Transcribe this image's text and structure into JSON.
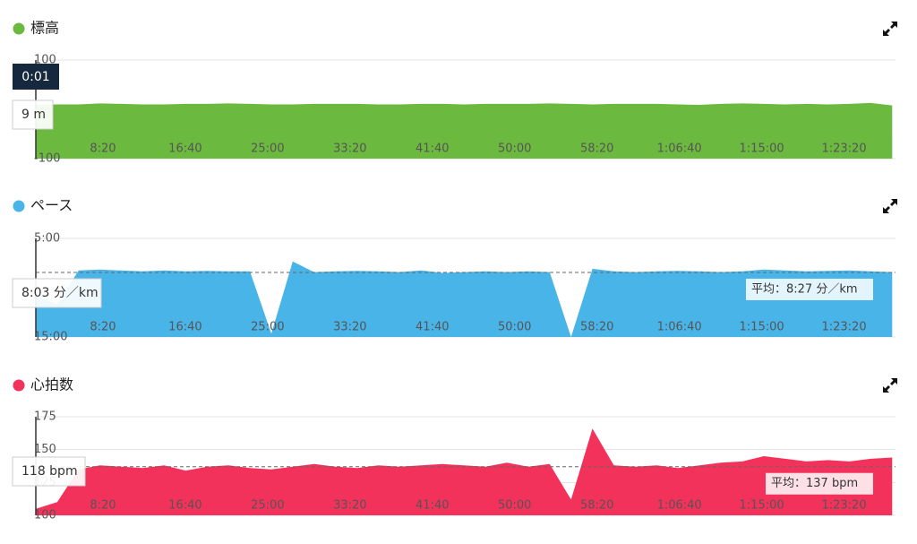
{
  "chart_data": [
    {
      "type": "area",
      "title": "標高",
      "color": "#6cb93f",
      "cursor_time": "0:01",
      "tooltip": "9 m",
      "x": [
        0,
        130,
        260,
        390,
        520,
        650,
        780,
        910,
        1040,
        1170,
        1300,
        1430,
        1560,
        1690,
        1820,
        1950,
        2080,
        2210,
        2340,
        2470,
        2600,
        2730,
        2860,
        2990,
        3120,
        3250,
        3380,
        3510,
        3640,
        3770,
        3900,
        4030,
        4160,
        4290,
        4420,
        4550,
        4680,
        4810,
        4940,
        5070,
        5200
      ],
      "values": [
        9,
        10,
        10,
        12,
        11,
        10,
        10,
        11,
        11,
        12,
        11,
        10,
        10,
        11,
        11,
        11,
        10,
        10,
        11,
        11,
        10,
        11,
        11,
        11,
        12,
        11,
        10,
        11,
        11,
        11,
        10,
        9,
        11,
        12,
        11,
        10,
        11,
        10,
        11,
        13,
        8
      ],
      "xlim": [
        0,
        5220
      ],
      "xticks": [
        {
          "value": 500,
          "label": "8:20"
        },
        {
          "value": 1000,
          "label": "16:40"
        },
        {
          "value": 1500,
          "label": "25:00"
        },
        {
          "value": 2000,
          "label": "33:20"
        },
        {
          "value": 2500,
          "label": "41:40"
        },
        {
          "value": 3000,
          "label": "50:00"
        },
        {
          "value": 3500,
          "label": "58:20"
        },
        {
          "value": 4000,
          "label": "1:06:40"
        },
        {
          "value": 4500,
          "label": "1:15:00"
        },
        {
          "value": 5000,
          "label": "1:23:20"
        }
      ],
      "ylim": [
        -100,
        100
      ],
      "yticks": [
        {
          "value": -100,
          "label": "-100"
        },
        100
      ],
      "grid": true
    },
    {
      "type": "area",
      "title": "ペース",
      "color": "#49b4e8",
      "tooltip": "8:03 分／km",
      "y_inverted": true,
      "average": 507,
      "average_label": "平均：8:27 分／km",
      "x": [
        0,
        130,
        260,
        390,
        520,
        650,
        780,
        910,
        1040,
        1170,
        1300,
        1430,
        1560,
        1690,
        1820,
        1950,
        2080,
        2210,
        2340,
        2470,
        2600,
        2730,
        2860,
        2990,
        3120,
        3250,
        3380,
        3510,
        3640,
        3770,
        3900,
        4030,
        4160,
        4290,
        4420,
        4550,
        4680,
        4810,
        4940,
        5070,
        5200
      ],
      "values": [
        650,
        700,
        495,
        490,
        495,
        500,
        495,
        500,
        498,
        500,
        500,
        880,
        440,
        505,
        500,
        498,
        500,
        505,
        495,
        510,
        505,
        500,
        505,
        500,
        505,
        900,
        485,
        500,
        505,
        500,
        498,
        500,
        505,
        500,
        490,
        495,
        500,
        498,
        495,
        500,
        505
      ],
      "xlim": [
        0,
        5220
      ],
      "xticks": [
        {
          "value": 500,
          "label": "8:20"
        },
        {
          "value": 1000,
          "label": "16:40"
        },
        {
          "value": 1500,
          "label": "25:00"
        },
        {
          "value": 2000,
          "label": "33:20"
        },
        {
          "value": 2500,
          "label": "41:40"
        },
        {
          "value": 3000,
          "label": "50:00"
        },
        {
          "value": 3500,
          "label": "58:20"
        },
        {
          "value": 4000,
          "label": "1:06:40"
        },
        {
          "value": 4500,
          "label": "1:15:00"
        },
        {
          "value": 5000,
          "label": "1:23:20"
        }
      ],
      "ylim": [
        300,
        900
      ],
      "yticks": [
        {
          "value": 300,
          "label": "5:00"
        },
        {
          "value": 900,
          "label": "15:00"
        }
      ],
      "grid": true
    },
    {
      "type": "area",
      "title": "心拍数",
      "color": "#f2325a",
      "tooltip": "118 bpm",
      "average": 137,
      "average_label": "平均：137 bpm",
      "x": [
        0,
        130,
        260,
        390,
        520,
        650,
        780,
        910,
        1040,
        1170,
        1300,
        1430,
        1560,
        1690,
        1820,
        1950,
        2080,
        2210,
        2340,
        2470,
        2600,
        2730,
        2860,
        2990,
        3120,
        3250,
        3380,
        3510,
        3640,
        3770,
        3900,
        4030,
        4160,
        4290,
        4420,
        4550,
        4680,
        4810,
        4940,
        5070,
        5200
      ],
      "values": [
        105,
        110,
        135,
        138,
        137,
        136,
        138,
        134,
        137,
        138,
        136,
        135,
        137,
        139,
        137,
        136,
        138,
        137,
        138,
        139,
        138,
        137,
        140,
        137,
        139,
        112,
        166,
        138,
        137,
        138,
        136,
        138,
        140,
        141,
        145,
        143,
        141,
        142,
        141,
        143,
        144
      ],
      "xlim": [
        0,
        5220
      ],
      "xticks": [
        {
          "value": 500,
          "label": "8:20"
        },
        {
          "value": 1000,
          "label": "16:40"
        },
        {
          "value": 1500,
          "label": "25:00"
        },
        {
          "value": 2000,
          "label": "33:20"
        },
        {
          "value": 2500,
          "label": "41:40"
        },
        {
          "value": 3000,
          "label": "50:00"
        },
        {
          "value": 3500,
          "label": "58:20"
        },
        {
          "value": 4000,
          "label": "1:06:40"
        },
        {
          "value": 4500,
          "label": "1:15:00"
        },
        {
          "value": 5000,
          "label": "1:23:20"
        }
      ],
      "ylim": [
        100,
        175
      ],
      "yticks": [
        100,
        125,
        150,
        175
      ],
      "grid": true
    }
  ]
}
